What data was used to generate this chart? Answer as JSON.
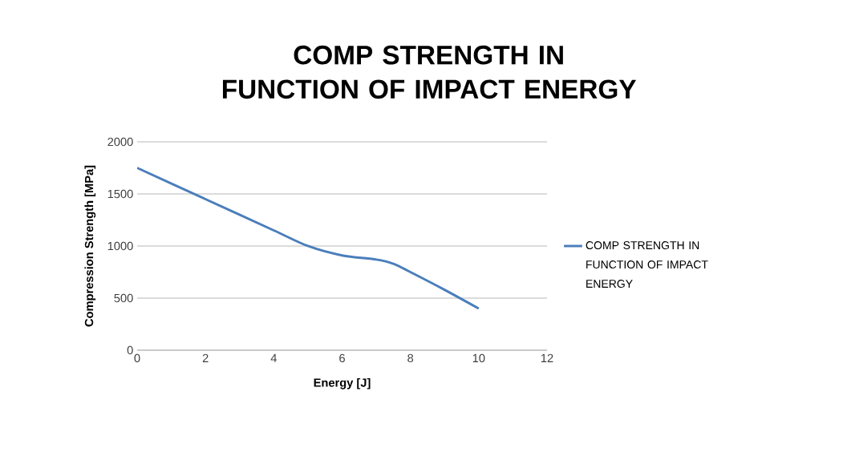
{
  "chart_data": {
    "type": "line",
    "title": "COMP STRENGTH IN FUNCTION OF IMPACT ENERGY",
    "xlabel": "Energy [J]",
    "ylabel": "Compression Strength [MPa]",
    "x": [
      0,
      2,
      4,
      5,
      6,
      7,
      7.5,
      8,
      9,
      10
    ],
    "series": [
      {
        "name": "COMP STRENGTH IN FUNCTION OF IMPACT ENERGY",
        "color": "#4a7ebb",
        "values": [
          1750,
          1450,
          1150,
          1000,
          910,
          870,
          830,
          750,
          580,
          400
        ]
      }
    ],
    "xlim": [
      0,
      12
    ],
    "ylim": [
      0,
      2000
    ],
    "xticks": [
      0,
      2,
      4,
      6,
      8,
      10,
      12
    ],
    "yticks": [
      0,
      500,
      1000,
      1500,
      2000
    ],
    "grid": "y",
    "legend": "right",
    "marker": "none",
    "line_style": "solid"
  }
}
